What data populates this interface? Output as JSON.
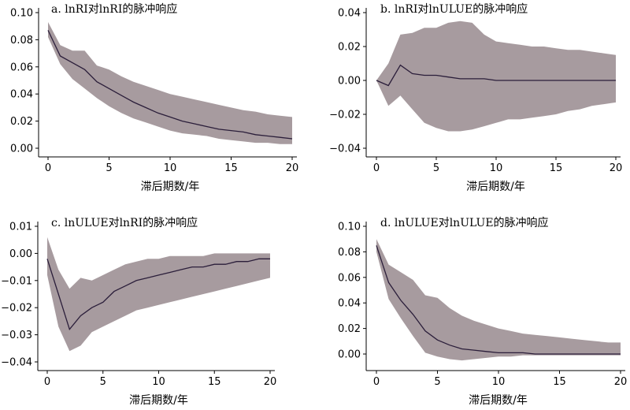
{
  "colors": {
    "band": "#a79b9f",
    "line": "#2b1e3a",
    "axis": "#000000"
  },
  "chart_data": [
    {
      "type": "area",
      "title": "a. lnRI对lnRI的脉冲响应",
      "xlabel": "滞后期数/年",
      "ylabel": "",
      "xlim": [
        0,
        20
      ],
      "ylim": [
        0,
        0.1
      ],
      "xticks": [
        0,
        5,
        10,
        15,
        20
      ],
      "yticks": [
        0,
        0.02,
        0.04,
        0.06,
        0.08,
        0.1
      ],
      "ytick_labels": [
        "0.00",
        "0.02",
        "0.04",
        "0.06",
        "0.08",
        "0.10"
      ],
      "x": [
        0,
        1,
        2,
        3,
        4,
        5,
        6,
        7,
        8,
        9,
        10,
        11,
        12,
        13,
        14,
        15,
        16,
        17,
        18,
        19,
        20
      ],
      "series": [
        {
          "values": [
            0.087,
            0.068,
            0.063,
            0.058,
            0.049,
            0.044,
            0.039,
            0.034,
            0.03,
            0.026,
            0.023,
            0.02,
            0.018,
            0.016,
            0.014,
            0.013,
            0.012,
            0.01,
            0.009,
            0.008,
            0.007
          ]
        }
      ],
      "band_lower": [
        0.082,
        0.062,
        0.051,
        0.044,
        0.037,
        0.031,
        0.026,
        0.022,
        0.019,
        0.016,
        0.013,
        0.011,
        0.01,
        0.009,
        0.007,
        0.006,
        0.005,
        0.004,
        0.004,
        0.003,
        0.003
      ],
      "band_upper": [
        0.093,
        0.076,
        0.072,
        0.072,
        0.061,
        0.058,
        0.053,
        0.049,
        0.046,
        0.043,
        0.04,
        0.038,
        0.036,
        0.034,
        0.032,
        0.03,
        0.028,
        0.027,
        0.025,
        0.024,
        0.023
      ]
    },
    {
      "type": "area",
      "title": "b. lnRI对lnULUE的脉冲响应",
      "xlabel": "滞后期数/年",
      "ylabel": "",
      "xlim": [
        0,
        20
      ],
      "ylim": [
        -0.04,
        0.04
      ],
      "xticks": [
        0,
        5,
        10,
        15,
        20
      ],
      "yticks": [
        -0.04,
        -0.02,
        0,
        0.02,
        0.04
      ],
      "ytick_labels": [
        "−0.04",
        "−0.02",
        "0.00",
        "0.02",
        "0.04"
      ],
      "x": [
        0,
        1,
        2,
        3,
        4,
        5,
        6,
        7,
        8,
        9,
        10,
        11,
        12,
        13,
        14,
        15,
        16,
        17,
        18,
        19,
        20
      ],
      "series": [
        {
          "values": [
            0.0,
            -0.003,
            0.009,
            0.004,
            0.003,
            0.003,
            0.002,
            0.001,
            0.001,
            0.001,
            0.0,
            0.0,
            0.0,
            0.0,
            0.0,
            0.0,
            0.0,
            0.0,
            0.0,
            0.0,
            0.0
          ]
        }
      ],
      "band_lower": [
        0.0,
        -0.015,
        -0.009,
        -0.017,
        -0.025,
        -0.028,
        -0.03,
        -0.03,
        -0.029,
        -0.027,
        -0.025,
        -0.023,
        -0.023,
        -0.022,
        -0.021,
        -0.02,
        -0.018,
        -0.017,
        -0.015,
        -0.014,
        -0.013
      ],
      "band_upper": [
        0.0,
        0.01,
        0.027,
        0.028,
        0.031,
        0.031,
        0.034,
        0.035,
        0.034,
        0.027,
        0.023,
        0.022,
        0.021,
        0.02,
        0.02,
        0.019,
        0.018,
        0.018,
        0.017,
        0.016,
        0.015
      ]
    },
    {
      "type": "area",
      "title": "c. lnULUE对lnRI的脉冲响应",
      "xlabel": "滞后期数/年",
      "ylabel": "",
      "xlim": [
        0,
        20
      ],
      "ylim": [
        -0.04,
        0.01
      ],
      "xticks": [
        0,
        5,
        10,
        15,
        20
      ],
      "yticks": [
        -0.04,
        -0.03,
        -0.02,
        -0.01,
        0,
        0.01
      ],
      "ytick_labels": [
        "−0.04",
        "−0.03",
        "−0.02",
        "−0.01",
        "0.00",
        "0.01"
      ],
      "x": [
        0,
        1,
        2,
        3,
        4,
        5,
        6,
        7,
        8,
        9,
        10,
        11,
        12,
        13,
        14,
        15,
        16,
        17,
        18,
        19,
        20
      ],
      "series": [
        {
          "values": [
            -0.002,
            -0.015,
            -0.028,
            -0.023,
            -0.02,
            -0.018,
            -0.014,
            -0.012,
            -0.01,
            -0.009,
            -0.008,
            -0.007,
            -0.006,
            -0.005,
            -0.005,
            -0.004,
            -0.004,
            -0.003,
            -0.003,
            -0.002,
            -0.002
          ]
        }
      ],
      "band_lower": [
        -0.008,
        -0.027,
        -0.036,
        -0.034,
        -0.029,
        -0.027,
        -0.025,
        -0.023,
        -0.021,
        -0.02,
        -0.019,
        -0.018,
        -0.017,
        -0.016,
        -0.015,
        -0.014,
        -0.013,
        -0.012,
        -0.011,
        -0.01,
        -0.009
      ],
      "band_upper": [
        0.006,
        -0.006,
        -0.013,
        -0.009,
        -0.01,
        -0.008,
        -0.006,
        -0.004,
        -0.003,
        -0.002,
        -0.002,
        -0.001,
        -0.001,
        -0.001,
        -0.001,
        0.0,
        0.0,
        0.0,
        0.0,
        0.0,
        0.0
      ]
    },
    {
      "type": "area",
      "title": "d. lnULUE对lnULUE的脉冲响应",
      "xlabel": "滞后期数/年",
      "ylabel": "",
      "xlim": [
        0,
        20
      ],
      "ylim": [
        0,
        0.1
      ],
      "xticks": [
        0,
        5,
        10,
        15,
        20
      ],
      "yticks": [
        0,
        0.02,
        0.04,
        0.06,
        0.08,
        0.1
      ],
      "ytick_labels": [
        "0.00",
        "0.02",
        "0.04",
        "0.06",
        "0.08",
        "0.10"
      ],
      "x": [
        0,
        1,
        2,
        3,
        4,
        5,
        6,
        7,
        8,
        9,
        10,
        11,
        12,
        13,
        14,
        15,
        16,
        17,
        18,
        19,
        20
      ],
      "series": [
        {
          "values": [
            0.085,
            0.056,
            0.042,
            0.031,
            0.018,
            0.011,
            0.007,
            0.004,
            0.003,
            0.002,
            0.001,
            0.001,
            0.001,
            0.0,
            0.0,
            0.0,
            0.0,
            0.0,
            0.0,
            0.0,
            0.0
          ]
        }
      ],
      "band_lower": [
        0.08,
        0.043,
        0.028,
        0.014,
        0.001,
        -0.002,
        -0.004,
        -0.005,
        -0.004,
        -0.003,
        -0.002,
        -0.002,
        -0.001,
        -0.001,
        -0.001,
        -0.001,
        -0.001,
        -0.001,
        -0.001,
        -0.001,
        -0.001
      ],
      "band_upper": [
        0.09,
        0.07,
        0.064,
        0.058,
        0.046,
        0.044,
        0.036,
        0.03,
        0.026,
        0.023,
        0.02,
        0.018,
        0.016,
        0.015,
        0.014,
        0.013,
        0.012,
        0.011,
        0.01,
        0.009,
        0.009
      ]
    }
  ]
}
